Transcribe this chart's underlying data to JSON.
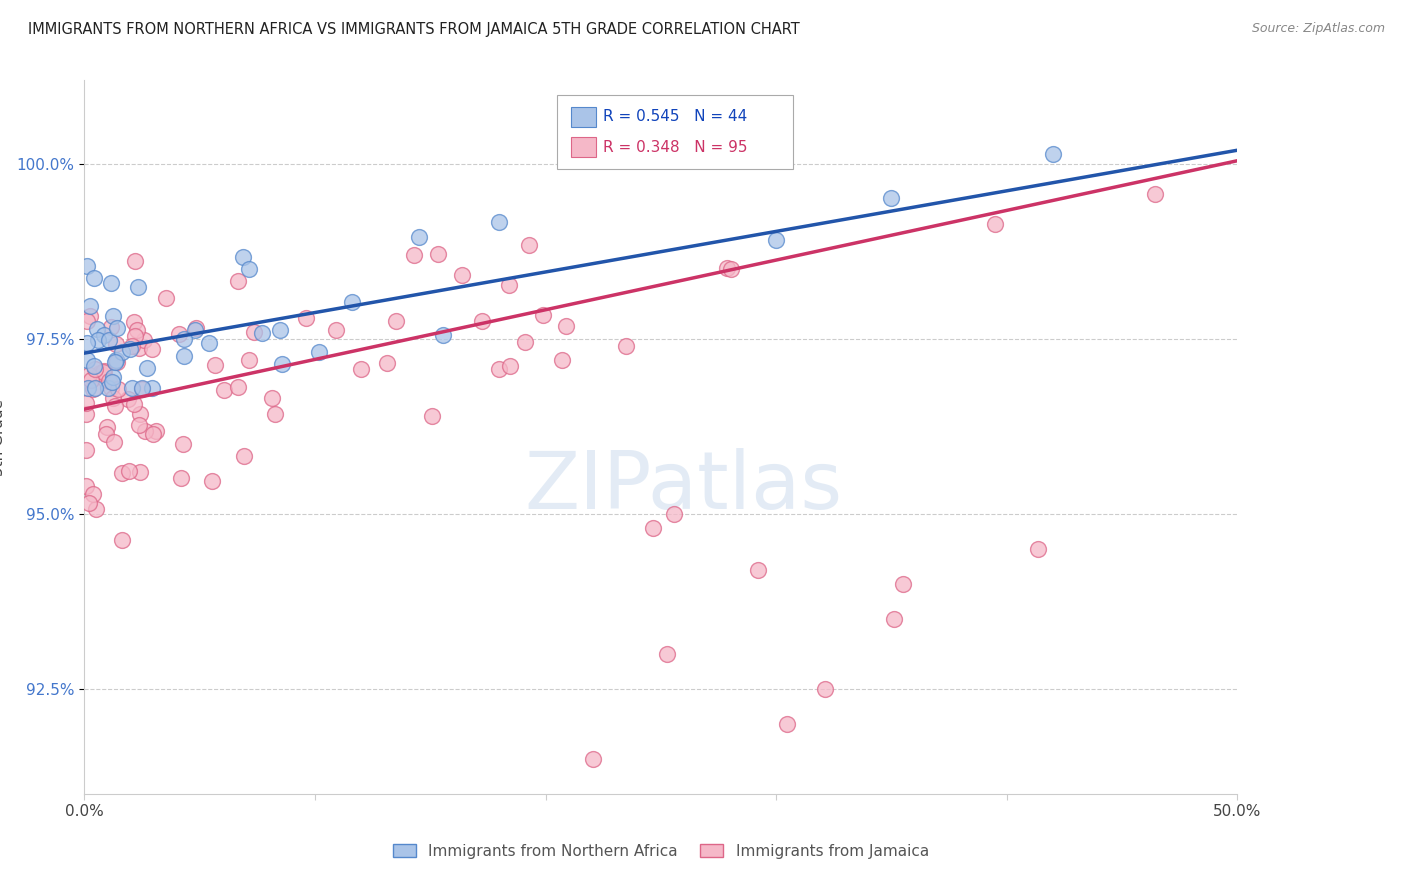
{
  "title": "IMMIGRANTS FROM NORTHERN AFRICA VS IMMIGRANTS FROM JAMAICA 5TH GRADE CORRELATION CHART",
  "source": "Source: ZipAtlas.com",
  "ylabel": "5th Grade",
  "ylabel_values": [
    92.5,
    95.0,
    97.5,
    100.0
  ],
  "xmin": 0.0,
  "xmax": 50.0,
  "ymin": 91.0,
  "ymax": 101.2,
  "blue_R": 0.545,
  "blue_N": 44,
  "pink_R": 0.348,
  "pink_N": 95,
  "blue_color": "#aac4e8",
  "pink_color": "#f5b8c8",
  "blue_edge_color": "#5588cc",
  "pink_edge_color": "#dd6688",
  "blue_line_color": "#2255aa",
  "pink_line_color": "#cc3366",
  "legend_label_blue": "Immigrants from Northern Africa",
  "legend_label_pink": "Immigrants from Jamaica",
  "blue_line_x0": 0.0,
  "blue_line_y0": 97.3,
  "blue_line_x1": 50.0,
  "blue_line_y1": 100.2,
  "pink_line_x0": 0.0,
  "pink_line_y0": 96.5,
  "pink_line_x1": 50.0,
  "pink_line_y1": 100.05
}
